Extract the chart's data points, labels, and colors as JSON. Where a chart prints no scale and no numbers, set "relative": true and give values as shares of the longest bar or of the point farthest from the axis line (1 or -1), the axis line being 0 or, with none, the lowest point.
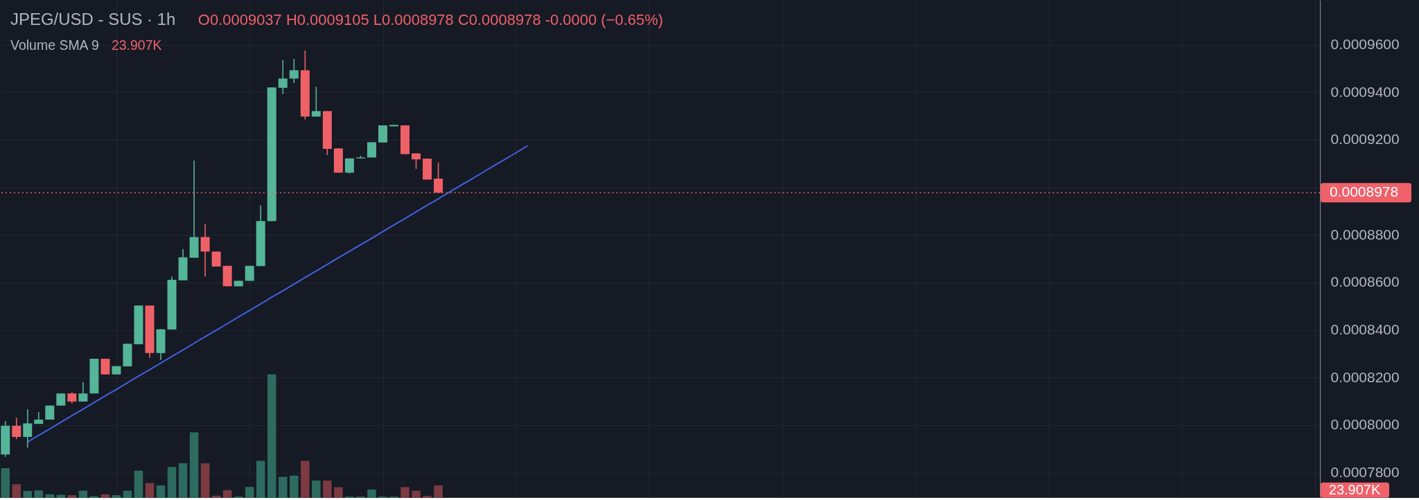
{
  "chart_data": [
    {
      "type": "candlestick",
      "title": "JPEG/USD - SUS · 1h",
      "subtitle": "O0.0009037 H0.0009105 L0.0008978 C0.0008978 -0.0000 (−0.65%)",
      "categories": [
        null,
        null,
        null,
        null,
        null,
        null,
        null,
        null,
        null,
        null,
        null,
        null,
        null,
        null,
        null,
        null,
        null,
        null,
        null,
        null,
        null,
        null,
        null,
        null,
        null,
        null,
        null,
        null,
        null,
        null,
        null,
        null,
        null,
        null,
        null,
        null,
        null,
        null,
        null,
        null,
        null,
        null,
        null,
        null,
        null,
        null,
        null,
        null,
        null,
        null,
        null,
        null,
        null,
        null,
        null,
        null,
        null,
        null,
        null,
        null,
        null,
        null,
        null,
        null,
        null,
        null,
        null,
        null,
        null,
        null,
        null,
        null,
        null,
        null,
        null,
        null,
        null,
        null,
        null,
        null,
        null,
        null,
        null,
        null,
        null,
        null,
        null,
        null,
        null,
        null,
        null,
        null,
        null,
        null,
        null,
        null,
        null,
        null,
        null,
        null,
        null,
        null,
        null,
        null,
        null,
        null,
        null,
        null,
        null,
        null,
        null,
        null,
        null,
        null,
        null,
        null,
        null,
        null,
        null
      ],
      "ohlc": [
        [
          0.0007876,
          0.0008017,
          0.0007866,
          0.0007997
        ],
        [
          0.0007997,
          0.0008031,
          0.0007941,
          0.000795
        ],
        [
          0.000795,
          0.0008067,
          0.0007905,
          0.0008007
        ],
        [
          0.0008005,
          0.0008055,
          0.0008005,
          0.0008023
        ],
        [
          0.0008023,
          0.0008082,
          0.0008023,
          0.0008082
        ],
        [
          0.0008082,
          0.0008133,
          0.0008082,
          0.0008133
        ],
        [
          0.0008133,
          0.0008138,
          0.0008091,
          0.0008099
        ],
        [
          0.0008099,
          0.0008181,
          0.0008099,
          0.0008133
        ],
        [
          0.0008133,
          0.0008279,
          0.0008133,
          0.0008279
        ],
        [
          0.0008279,
          0.0008279,
          0.0008213,
          0.0008213
        ],
        [
          0.0008213,
          0.0008248,
          0.0008213,
          0.0008248
        ],
        [
          0.0008247,
          0.0008342,
          0.0008247,
          0.0008342
        ],
        [
          0.000834,
          0.0008503,
          0.000834,
          0.0008503
        ],
        [
          0.0008503,
          0.0008503,
          0.0008283,
          0.0008303
        ],
        [
          0.0008303,
          0.0008403,
          0.0008274,
          0.0008403
        ],
        [
          0.0008402,
          0.0008625,
          0.0008402,
          0.0008611
        ],
        [
          0.0008609,
          0.000874,
          0.0008609,
          0.0008706
        ],
        [
          0.0008704,
          0.0009113,
          0.0008704,
          0.0008791
        ],
        [
          0.0008791,
          0.0008845,
          0.0008625,
          0.000873
        ],
        [
          0.000873,
          0.000873,
          0.0008667,
          0.0008667
        ],
        [
          0.000867,
          0.000867,
          0.0008584,
          0.0008584
        ],
        [
          0.0008584,
          0.0008607,
          0.0008584,
          0.0008607
        ],
        [
          0.0008607,
          0.000867,
          0.0008607,
          0.000867
        ],
        [
          0.0008669,
          0.0008924,
          0.0008669,
          0.0008858
        ],
        [
          0.0008858,
          0.0009421,
          0.0008858,
          0.0009421
        ],
        [
          0.0009419,
          0.0009536,
          0.0009393,
          0.0009458
        ],
        [
          0.0009458,
          0.0009541,
          0.0009439,
          0.0009493
        ],
        [
          0.0009493,
          0.0009576,
          0.0009286,
          0.0009298
        ],
        [
          0.0009298,
          0.0009423,
          0.0009298,
          0.0009321
        ],
        [
          0.0009321,
          0.0009321,
          0.0009136,
          0.0009162
        ],
        [
          0.0009164,
          0.0009164,
          0.0009062,
          0.0009062
        ],
        [
          0.0009062,
          0.0009122,
          0.0009059,
          0.0009122
        ],
        [
          0.0009122,
          0.0009133,
          0.0009122,
          0.0009126
        ],
        [
          0.0009126,
          0.000919,
          0.0009126,
          0.000919
        ],
        [
          0.0009189,
          0.0009261,
          0.0009189,
          0.0009261
        ],
        [
          0.0009257,
          0.0009263,
          0.0009257,
          0.0009263
        ],
        [
          0.0009261,
          0.0009261,
          0.000914,
          0.000914
        ],
        [
          0.0009143,
          0.0009143,
          0.0009078,
          0.0009118
        ],
        [
          0.0009121,
          0.0009121,
          0.0009033,
          0.0009033
        ],
        [
          0.0009037,
          0.0009105,
          0.0008978,
          0.0008978
        ],
        null,
        null,
        null,
        null,
        null,
        null,
        null,
        null,
        null,
        null,
        null,
        null,
        null,
        null,
        null,
        null,
        null,
        null,
        null,
        null,
        null,
        null,
        null,
        null,
        null,
        null,
        null,
        null,
        null,
        null,
        null,
        null,
        null,
        null,
        null,
        null,
        null,
        null,
        null,
        null,
        null,
        null,
        null,
        null,
        null,
        null,
        null,
        null,
        null,
        null,
        null,
        null,
        null,
        null,
        null,
        null,
        null,
        null,
        null,
        null,
        null,
        null,
        null,
        null,
        null,
        null,
        null,
        null,
        null,
        null,
        null,
        null,
        null,
        null,
        null,
        null,
        null,
        null,
        null
      ],
      "colors": [
        "#55b598",
        "#ef6167",
        "#55b598",
        "#55b598",
        "#55b598",
        "#55b598",
        "#ef6167",
        "#55b598",
        "#55b598",
        "#ef6167",
        "#55b598",
        "#55b598",
        "#55b598",
        "#ef6167",
        "#55b598",
        "#55b598",
        "#55b598",
        "#55b598",
        "#ef6167",
        "#ef6167",
        "#ef6167",
        "#55b598",
        "#55b598",
        "#55b598",
        "#55b598",
        "#55b598",
        "#55b598",
        "#ef6167",
        "#55b598",
        "#ef6167",
        "#ef6167",
        "#55b598",
        "#55b598",
        "#55b598",
        "#55b598",
        "#55b598",
        "#ef6167",
        "#ef6167",
        "#ef6167",
        "#ef6167",
        null,
        null,
        null,
        null,
        null,
        null,
        null,
        null,
        null,
        null,
        null,
        null,
        null,
        null,
        null,
        null,
        null,
        null,
        null,
        null,
        null,
        null,
        null,
        null,
        null,
        null,
        null,
        null,
        null,
        null,
        null,
        null,
        null,
        null,
        null,
        null,
        null,
        null,
        null,
        null,
        null,
        null,
        null,
        null,
        null,
        null,
        null,
        null,
        null,
        null,
        null,
        null,
        null,
        null,
        null,
        null,
        null,
        null,
        null,
        null,
        null,
        null,
        null,
        null,
        null,
        null,
        null,
        null,
        null,
        null,
        null,
        null,
        null,
        null,
        null,
        null,
        null,
        null,
        null
      ],
      "series": [
        {
          "type": "line",
          "color": "#4161e0",
          "values": [
            null,
            null,
            0.0007929,
            0.0007957,
            0.0007984,
            0.0008012,
            0.000804,
            0.0008067,
            0.0008095,
            0.0008123,
            0.000815,
            0.0008178,
            0.0008206,
            0.0008233,
            0.0008261,
            0.0008289,
            0.0008316,
            0.0008344,
            0.0008372,
            0.0008399,
            0.0008427,
            0.0008455,
            0.0008482,
            0.000851,
            0.0008538,
            0.0008565,
            0.0008593,
            0.0008621,
            0.0008648,
            0.0008676,
            0.0008704,
            0.0008731,
            0.0008759,
            0.0008786,
            0.0008814,
            0.0008842,
            0.0008869,
            0.0008897,
            0.0008925,
            0.0008952,
            0.000898,
            0.0009008,
            0.0009035,
            0.0009063,
            0.0009091,
            0.0009118,
            0.0009146,
            0.0009174,
            null,
            null,
            null,
            null,
            null,
            null,
            null,
            null,
            null,
            null,
            null,
            null,
            null,
            null,
            null,
            null,
            null,
            null,
            null,
            null,
            null,
            null,
            null,
            null,
            null,
            null,
            null,
            null,
            null,
            null,
            null,
            null,
            null,
            null,
            null,
            null,
            null,
            null,
            null,
            null,
            null,
            null,
            null,
            null,
            null,
            null,
            null,
            null,
            null,
            null,
            null,
            null,
            null,
            null,
            null,
            null,
            null,
            null,
            null,
            null,
            null,
            null,
            null,
            null,
            null,
            null,
            null,
            null,
            null,
            null,
            null
          ]
        }
      ],
      "ylim": [
        0.0007694,
        0.0009788
      ],
      "yticks": [
        {
          "value": 0.00078,
          "label": "0.0007800"
        },
        {
          "value": 0.0008,
          "label": "0.0008000"
        },
        {
          "value": 0.00082,
          "label": "0.0008200"
        },
        {
          "value": 0.00084,
          "label": "0.0008400"
        },
        {
          "value": 0.00086,
          "label": "0.0008600"
        },
        {
          "value": 0.00088,
          "label": "0.0008800"
        },
        {
          "value": 0.0009,
          "label": null
        },
        {
          "value": 0.00092,
          "label": "0.0009200"
        },
        {
          "value": 0.00094,
          "label": "0.0009400"
        },
        {
          "value": 0.00096,
          "label": "0.0009600"
        }
      ],
      "ref_lines": [
        {
          "axis": "y",
          "value": 0.0008978,
          "label": "0.0008978",
          "color": "#f0616a",
          "line_style": "dotted"
        }
      ],
      "grid": true,
      "tick_labels": "y"
    },
    {
      "type": "bar",
      "relative": true,
      "annotations": [
        "Volume SMA 9",
        "23.907K",
        "23.907K"
      ],
      "categories": [
        null,
        null,
        null,
        null,
        null,
        null,
        null,
        null,
        null,
        null,
        null,
        null,
        null,
        null,
        null,
        null,
        null,
        null,
        null,
        null,
        null,
        null,
        null,
        null,
        null,
        null,
        null,
        null,
        null,
        null,
        null,
        null,
        null,
        null,
        null,
        null,
        null,
        null,
        null,
        null,
        null,
        null,
        null,
        null,
        null,
        null,
        null,
        null,
        null,
        null,
        null,
        null,
        null,
        null,
        null,
        null,
        null,
        null,
        null,
        null,
        null,
        null,
        null,
        null,
        null,
        null,
        null,
        null,
        null,
        null,
        null,
        null,
        null,
        null,
        null,
        null,
        null,
        null,
        null,
        null,
        null,
        null,
        null,
        null,
        null,
        null,
        null,
        null,
        null,
        null,
        null,
        null,
        null,
        null,
        null,
        null,
        null,
        null,
        null,
        null,
        null,
        null,
        null,
        null,
        null,
        null,
        null,
        null,
        null,
        null,
        null,
        null,
        null,
        null,
        null,
        null,
        null,
        null,
        null
      ],
      "values": [
        0.24,
        0.11,
        0.056,
        0.06,
        0.028,
        0.024,
        0.021,
        0.058,
        0.013,
        0.028,
        0.021,
        0.058,
        0.22,
        0.12,
        0.1,
        0.25,
        0.28,
        0.53,
        0.28,
        0.017,
        0.062,
        0.01,
        0.088,
        0.3,
        1,
        0.17,
        0.18,
        0.3,
        0.14,
        0.14,
        0.085,
        0.01,
        0.01,
        0.067,
        0.01,
        0.01,
        0.087,
        0.058,
        0.015,
        0.1,
        null,
        null,
        null,
        null,
        null,
        null,
        null,
        null,
        null,
        null,
        null,
        null,
        null,
        null,
        null,
        null,
        null,
        null,
        null,
        null,
        null,
        null,
        null,
        null,
        null,
        null,
        null,
        null,
        null,
        null,
        null,
        null,
        null,
        null,
        null,
        null,
        null,
        null,
        null,
        null,
        null,
        null,
        null,
        null,
        null,
        null,
        null,
        null,
        null,
        null,
        null,
        null,
        null,
        null,
        null,
        null,
        null,
        null,
        null,
        null,
        null,
        null,
        null,
        null,
        null,
        null,
        null,
        null,
        null,
        null,
        null,
        null,
        null,
        null,
        null,
        null,
        null,
        null,
        null
      ],
      "colors": [
        "#2e6b5f",
        "#7d3a43",
        "#2e6b5f",
        "#2e6b5f",
        "#2e6b5f",
        "#2e6b5f",
        "#7d3a43",
        "#2e6b5f",
        "#2e6b5f",
        "#7d3a43",
        "#2e6b5f",
        "#2e6b5f",
        "#2e6b5f",
        "#7d3a43",
        "#2e6b5f",
        "#2e6b5f",
        "#2e6b5f",
        "#2e6b5f",
        "#7d3a43",
        "#7d3a43",
        "#7d3a43",
        "#2e6b5f",
        "#2e6b5f",
        "#2e6b5f",
        "#2e6b5f",
        "#2e6b5f",
        "#2e6b5f",
        "#7d3a43",
        "#2e6b5f",
        "#7d3a43",
        "#7d3a43",
        "#2e6b5f",
        "#2e6b5f",
        "#2e6b5f",
        "#2e6b5f",
        "#2e6b5f",
        "#7d3a43",
        "#7d3a43",
        "#7d3a43",
        "#7d3a43",
        null,
        null,
        null,
        null,
        null,
        null,
        null,
        null,
        null,
        null,
        null,
        null,
        null,
        null,
        null,
        null,
        null,
        null,
        null,
        null,
        null,
        null,
        null,
        null,
        null,
        null,
        null,
        null,
        null,
        null,
        null,
        null,
        null,
        null,
        null,
        null,
        null,
        null,
        null,
        null,
        null,
        null,
        null,
        null,
        null,
        null,
        null,
        null,
        null,
        null,
        null,
        null,
        null,
        null,
        null,
        null,
        null,
        null,
        null,
        null,
        null,
        null,
        null,
        null,
        null,
        null,
        null,
        null,
        null,
        null,
        null,
        null,
        null,
        null,
        null,
        null,
        null,
        null,
        null
      ],
      "tick_labels": false
    }
  ]
}
